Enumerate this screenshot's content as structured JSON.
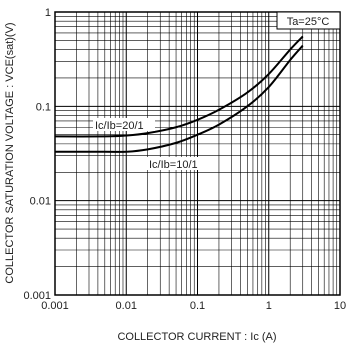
{
  "chart_data": {
    "type": "line",
    "x_scale": "log",
    "y_scale": "log",
    "xlim": [
      0.001,
      10
    ],
    "ylim": [
      0.001,
      1
    ],
    "grid": true,
    "xlabel": "COLLECTOR CURRENT : Ic (A)",
    "ylabel": "COLLECTOR SATURATION VOLTAGE : VCE(sat)(V)",
    "x_ticks": [
      {
        "value": 0.001,
        "label": "0.001"
      },
      {
        "value": 0.01,
        "label": "0.01"
      },
      {
        "value": 0.1,
        "label": "0.1"
      },
      {
        "value": 1,
        "label": "1"
      },
      {
        "value": 10,
        "label": "10"
      }
    ],
    "y_ticks": [
      {
        "value": 0.001,
        "label": "0.001"
      },
      {
        "value": 0.01,
        "label": "0.01"
      },
      {
        "value": 0.1,
        "label": "0.1"
      },
      {
        "value": 1,
        "label": "1"
      }
    ],
    "condition_label": "Ta=25°C",
    "series": [
      {
        "name": "Ic/Ib=20/1",
        "x": [
          0.001,
          0.005,
          0.01,
          0.02,
          0.05,
          0.1,
          0.2,
          0.5,
          1,
          2,
          3
        ],
        "y": [
          0.048,
          0.048,
          0.049,
          0.052,
          0.06,
          0.072,
          0.092,
          0.14,
          0.22,
          0.4,
          0.55
        ]
      },
      {
        "name": "Ic/Ib=10/1",
        "x": [
          0.001,
          0.005,
          0.01,
          0.02,
          0.05,
          0.1,
          0.2,
          0.5,
          1,
          2,
          3
        ],
        "y": [
          0.033,
          0.033,
          0.033,
          0.035,
          0.041,
          0.05,
          0.064,
          0.1,
          0.16,
          0.31,
          0.44
        ]
      }
    ]
  }
}
